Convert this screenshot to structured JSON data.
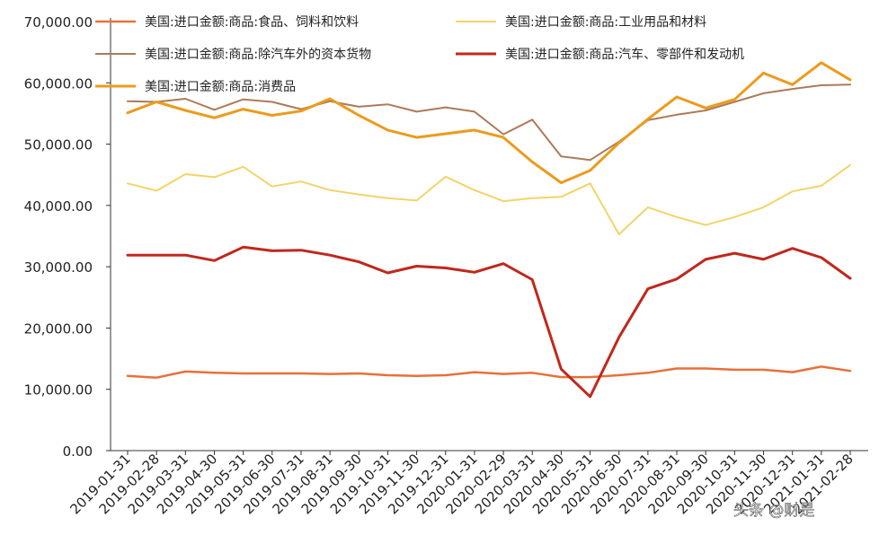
{
  "chart_data": {
    "type": "line",
    "title": "",
    "xlabel": "",
    "ylabel": "",
    "ylim": [
      0,
      70000
    ],
    "yticks": [
      0,
      10000,
      20000,
      30000,
      40000,
      50000,
      60000,
      70000
    ],
    "ytick_labels": [
      "0.00",
      "10,000.00",
      "20,000.00",
      "30,000.00",
      "40,000.00",
      "50,000.00",
      "60,000.00",
      "70,000.00"
    ],
    "grid": false,
    "legend_position": "top",
    "categories": [
      "2019-01-31",
      "2019-02-28",
      "2019-03-31",
      "2019-04-30",
      "2019-05-31",
      "2019-06-30",
      "2019-07-31",
      "2019-08-31",
      "2019-09-30",
      "2019-10-31",
      "2019-11-30",
      "2019-12-31",
      "2020-01-31",
      "2020-02-29",
      "2020-03-31",
      "2020-04-30",
      "2020-05-31",
      "2020-06-30",
      "2020-07-31",
      "2020-08-31",
      "2020-09-30",
      "2020-10-31",
      "2020-11-30",
      "2020-12-31",
      "2021-01-31",
      "2021-02-28"
    ],
    "tick_labels": [
      "2019-01-31",
      "2019-02-28",
      "2019-03-31",
      "2019-04-30",
      "2019-05-31",
      "2019-06-30",
      "2019-07-31",
      "2019-08-31",
      "2019-09-30",
      "2019-10-31",
      "2019-11-30",
      "2019-12-31",
      "2020-01-31",
      "2020-02-29",
      "2020-03-31",
      "2020-04-30",
      "2020-05-31",
      "2020-06-30",
      "2020-07-31",
      "2020-08-31",
      "2020-09-30",
      "2020-10-31",
      "2020-11-30",
      "2020-12-31",
      "2021-01-31",
      "2021-02-28"
    ],
    "series": [
      {
        "name": "美国:进口金额:商品:食品、饲料和饮料",
        "color": "#e8703a",
        "width": 2.5,
        "values": [
          12200,
          11900,
          12900,
          12700,
          12600,
          12600,
          12600,
          12500,
          12600,
          12300,
          12200,
          12300,
          12800,
          12500,
          12700,
          12000,
          12000,
          12300,
          12700,
          13400,
          13400,
          13200,
          13200,
          12800,
          13700,
          13000
        ]
      },
      {
        "name": "美国:进口金额:商品:工业用品和材料",
        "color": "#f2d468",
        "width": 2,
        "values": [
          43600,
          42400,
          45100,
          44600,
          46300,
          43100,
          43900,
          42500,
          41800,
          41200,
          40800,
          44700,
          42500,
          40700,
          41200,
          41400,
          43600,
          35300,
          39700,
          38100,
          36800,
          38100,
          39700,
          42300,
          43200,
          46600
        ]
      },
      {
        "name": "美国:进口金额:商品:除汽车外的资本货物",
        "color": "#ad7a57",
        "width": 2,
        "values": [
          57000,
          56900,
          57400,
          55600,
          57300,
          56900,
          55700,
          57000,
          56100,
          56500,
          55300,
          56000,
          55300,
          51600,
          54000,
          48000,
          47400,
          50400,
          53900,
          54800,
          55500,
          56900,
          58300,
          59000,
          59600,
          59700
        ]
      },
      {
        "name": "美国:进口金额:商品:汽车、零部件和发动机",
        "color": "#c0281c",
        "width": 3,
        "values": [
          31900,
          31900,
          31900,
          31000,
          33200,
          32600,
          32700,
          31900,
          30800,
          29000,
          30100,
          29800,
          29100,
          30500,
          27900,
          13300,
          8800,
          18500,
          26400,
          28000,
          31200,
          32200,
          31200,
          33000,
          31500,
          28100
        ]
      },
      {
        "name": "美国:进口金额:商品:消费品",
        "color": "#ec9b1c",
        "width": 3,
        "values": [
          55100,
          56900,
          55500,
          54300,
          55700,
          54700,
          55400,
          57400,
          54700,
          52300,
          51100,
          51700,
          52300,
          51100,
          47100,
          43700,
          45700,
          50200,
          54100,
          57700,
          55900,
          57300,
          61600,
          59700,
          63300,
          60500
        ]
      }
    ]
  },
  "watermark": {
    "text": "头条 @财是"
  }
}
